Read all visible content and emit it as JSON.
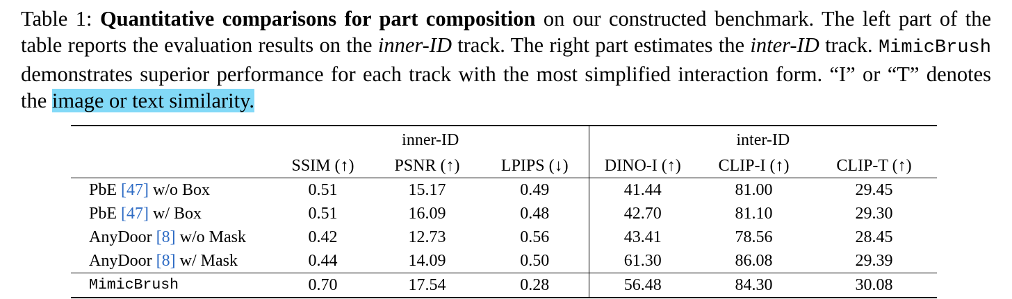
{
  "caption": {
    "label": "Table 1:",
    "title": "Quantitative comparisons for part composition",
    "seg1": " on our constructed benchmark. The left part of the table reports the evaluation results on the ",
    "inner_track": "inner-ID",
    "seg2": " track. The right part estimates the ",
    "inter_track": "inter-ID",
    "seg3": " track. ",
    "method_name": "MimicBrush",
    "seg4": " demonstrates superior performance for each track with the most simplified interaction form. “I” or “T” denotes the ",
    "highlight": "image or text similarity."
  },
  "highlight_color": "#82d9f7",
  "citation_color": "#2d6bc4",
  "table": {
    "groups": [
      "inner-ID",
      "inter-ID"
    ],
    "metrics": [
      "SSIM (↑)",
      "PSNR (↑)",
      "LPIPS (↓)",
      "DINO-I (↑)",
      "CLIP-I (↑)",
      "CLIP-T (↑)"
    ],
    "rows": [
      {
        "name": "PbE",
        "cite": "[47]",
        "suffix": "w/o Box",
        "values": [
          "0.51",
          "15.17",
          "0.49",
          "41.44",
          "81.00",
          "29.45"
        ]
      },
      {
        "name": "PbE",
        "cite": "[47]",
        "suffix": "w/ Box",
        "values": [
          "0.51",
          "16.09",
          "0.48",
          "42.70",
          "81.10",
          "29.30"
        ]
      },
      {
        "name": "AnyDoor",
        "cite": "[8]",
        "suffix": "w/o Mask",
        "values": [
          "0.42",
          "12.73",
          "0.56",
          "43.41",
          "78.56",
          "28.45"
        ]
      },
      {
        "name": "AnyDoor",
        "cite": "[8]",
        "suffix": "w/ Mask",
        "values": [
          "0.44",
          "14.09",
          "0.50",
          "61.30",
          "86.08",
          "29.39"
        ]
      },
      {
        "name": "MimicBrush",
        "values": [
          "0.70",
          "17.54",
          "0.28",
          "56.48",
          "84.30",
          "30.08"
        ]
      }
    ]
  }
}
